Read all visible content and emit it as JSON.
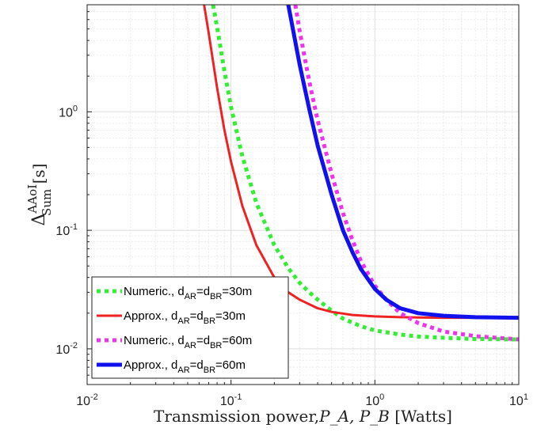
{
  "chart_data": {
    "type": "line",
    "xscale": "log",
    "yscale": "log",
    "xlim": [
      0.01,
      10
    ],
    "ylim": [
      0.005,
      8
    ],
    "grid": true,
    "legend_position": "bottom-left",
    "xlabel": {
      "text": "Transmission power,",
      "math": "P_A, P_B",
      "unit": "[Watts]"
    },
    "ylabel": {
      "symbol": "Δ",
      "superscript": "AAoI",
      "subscript": "Sum",
      "unit": "[s]"
    },
    "xticks": [
      {
        "value": 0.01,
        "base": "10",
        "exp": "-2"
      },
      {
        "value": 0.1,
        "base": "10",
        "exp": "-1"
      },
      {
        "value": 1,
        "base": "10",
        "exp": "0"
      },
      {
        "value": 10,
        "base": "10",
        "exp": "1"
      }
    ],
    "yticks": [
      {
        "value": 0.01,
        "base": "10",
        "exp": "-2"
      },
      {
        "value": 0.1,
        "base": "10",
        "exp": "-1"
      },
      {
        "value": 1,
        "base": "10",
        "exp": "0"
      }
    ],
    "series": [
      {
        "name": "Numeric., d_AR=d_BR=30m",
        "label": {
          "prefix": "Numeric., d",
          "sub1": "AR",
          "mid": "=d",
          "sub2": "BR",
          "suffix": "=30m"
        },
        "color": "#33ee33",
        "style": "dotted",
        "x": [
          0.075,
          0.08,
          0.09,
          0.1,
          0.12,
          0.15,
          0.2,
          0.25,
          0.3,
          0.35,
          0.4,
          0.5,
          0.6,
          0.8,
          1,
          1.5,
          2,
          3,
          5,
          10
        ],
        "y": [
          8,
          5.2,
          2.2,
          1.1,
          0.42,
          0.17,
          0.075,
          0.048,
          0.036,
          0.03,
          0.026,
          0.021,
          0.018,
          0.0155,
          0.0143,
          0.0132,
          0.0127,
          0.0124,
          0.0121,
          0.012
        ]
      },
      {
        "name": "Approx., d_AR=d_BR=30m",
        "label": {
          "prefix": "Approx., d",
          "sub1": "AR",
          "mid": "=d",
          "sub2": "BR",
          "suffix": "=30m"
        },
        "color": "#ee2222",
        "style": "solid",
        "x": [
          0.065,
          0.07,
          0.08,
          0.09,
          0.1,
          0.12,
          0.15,
          0.2,
          0.25,
          0.3,
          0.4,
          0.5,
          0.7,
          1,
          1.5,
          2,
          3,
          5,
          10
        ],
        "y": [
          8,
          4.6,
          1.6,
          0.7,
          0.38,
          0.16,
          0.075,
          0.04,
          0.03,
          0.026,
          0.022,
          0.0205,
          0.0193,
          0.0188,
          0.0185,
          0.0184,
          0.0183,
          0.0183,
          0.0183
        ]
      },
      {
        "name": "Numeric., d_AR=d_BR=60m",
        "label": {
          "prefix": "Numeric., d",
          "sub1": "AR",
          "mid": "=d",
          "sub2": "BR",
          "suffix": "=60m"
        },
        "color": "#ee33ee",
        "style": "dotted",
        "x": [
          0.28,
          0.3,
          0.35,
          0.4,
          0.5,
          0.6,
          0.7,
          0.8,
          1,
          1.2,
          1.5,
          2,
          3,
          5,
          10
        ],
        "y": [
          8,
          4.8,
          1.8,
          0.85,
          0.3,
          0.14,
          0.082,
          0.055,
          0.034,
          0.026,
          0.02,
          0.0165,
          0.014,
          0.0128,
          0.012
        ]
      },
      {
        "name": "Approx., d_AR=d_BR=60m",
        "label": {
          "prefix": "Approx., d",
          "sub1": "AR",
          "mid": "=d",
          "sub2": "BR",
          "suffix": "=60m"
        },
        "color": "#1111ee",
        "style": "solid",
        "x": [
          0.25,
          0.27,
          0.3,
          0.35,
          0.4,
          0.5,
          0.6,
          0.7,
          0.8,
          1,
          1.2,
          1.5,
          2,
          3,
          5,
          10
        ],
        "y": [
          8,
          4.9,
          2.5,
          1.05,
          0.52,
          0.2,
          0.1,
          0.065,
          0.047,
          0.032,
          0.026,
          0.022,
          0.02,
          0.019,
          0.0185,
          0.0183
        ]
      }
    ]
  }
}
